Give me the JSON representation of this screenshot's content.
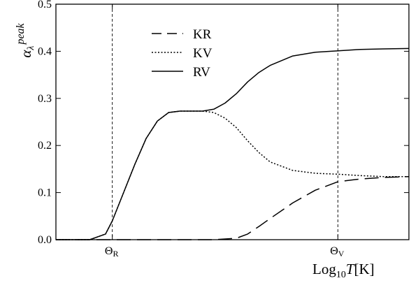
{
  "chart_data": {
    "type": "line",
    "title": "",
    "xlabel": {
      "prefix": "Log",
      "sub": "10",
      "var": "T",
      "unit": "[K]"
    },
    "ylabel": {
      "main": "α",
      "sub": "λ",
      "sup": "peak"
    },
    "x_ticks": [
      {
        "x": 0,
        "main": "Θ",
        "sub": "R"
      },
      {
        "x": 1,
        "main": "Θ",
        "sub": "V"
      }
    ],
    "xlim": [
      -0.25,
      1.315
    ],
    "ylim": [
      0.0,
      0.5
    ],
    "y_ticks": [
      "0.0",
      "0.1",
      "0.2",
      "0.3",
      "0.4",
      "0.5"
    ],
    "vlines": [
      0,
      1
    ],
    "grid": false,
    "legend_position": "top-center",
    "series": [
      {
        "name": "KR",
        "style": "dashed",
        "x": [
          -0.25,
          0.3,
          0.45,
          0.55,
          0.6,
          0.65,
          0.7,
          0.8,
          0.9,
          1.0,
          1.1,
          1.2,
          1.315
        ],
        "y": [
          0.0,
          0.0,
          0.0,
          0.003,
          0.012,
          0.028,
          0.045,
          0.078,
          0.105,
          0.123,
          0.129,
          0.132,
          0.134
        ]
      },
      {
        "name": "KV",
        "style": "dotted",
        "x": [
          -0.25,
          -0.1,
          -0.03,
          0.0,
          0.05,
          0.1,
          0.15,
          0.2,
          0.25,
          0.3,
          0.35,
          0.4,
          0.45,
          0.5,
          0.55,
          0.6,
          0.65,
          0.7,
          0.8,
          0.9,
          1.0,
          1.1,
          1.2,
          1.315
        ],
        "y": [
          0.0,
          0.0,
          0.012,
          0.04,
          0.1,
          0.16,
          0.215,
          0.252,
          0.27,
          0.273,
          0.273,
          0.273,
          0.27,
          0.258,
          0.238,
          0.21,
          0.185,
          0.165,
          0.147,
          0.141,
          0.139,
          0.136,
          0.134,
          0.134
        ]
      },
      {
        "name": "RV",
        "style": "solid",
        "x": [
          -0.25,
          -0.1,
          -0.03,
          0.0,
          0.05,
          0.1,
          0.15,
          0.2,
          0.25,
          0.3,
          0.35,
          0.4,
          0.45,
          0.5,
          0.55,
          0.6,
          0.65,
          0.7,
          0.8,
          0.9,
          1.0,
          1.1,
          1.2,
          1.315
        ],
        "y": [
          0.0,
          0.0,
          0.012,
          0.04,
          0.1,
          0.16,
          0.215,
          0.252,
          0.27,
          0.273,
          0.273,
          0.273,
          0.277,
          0.29,
          0.31,
          0.335,
          0.355,
          0.37,
          0.39,
          0.398,
          0.401,
          0.404,
          0.405,
          0.406
        ]
      }
    ]
  }
}
